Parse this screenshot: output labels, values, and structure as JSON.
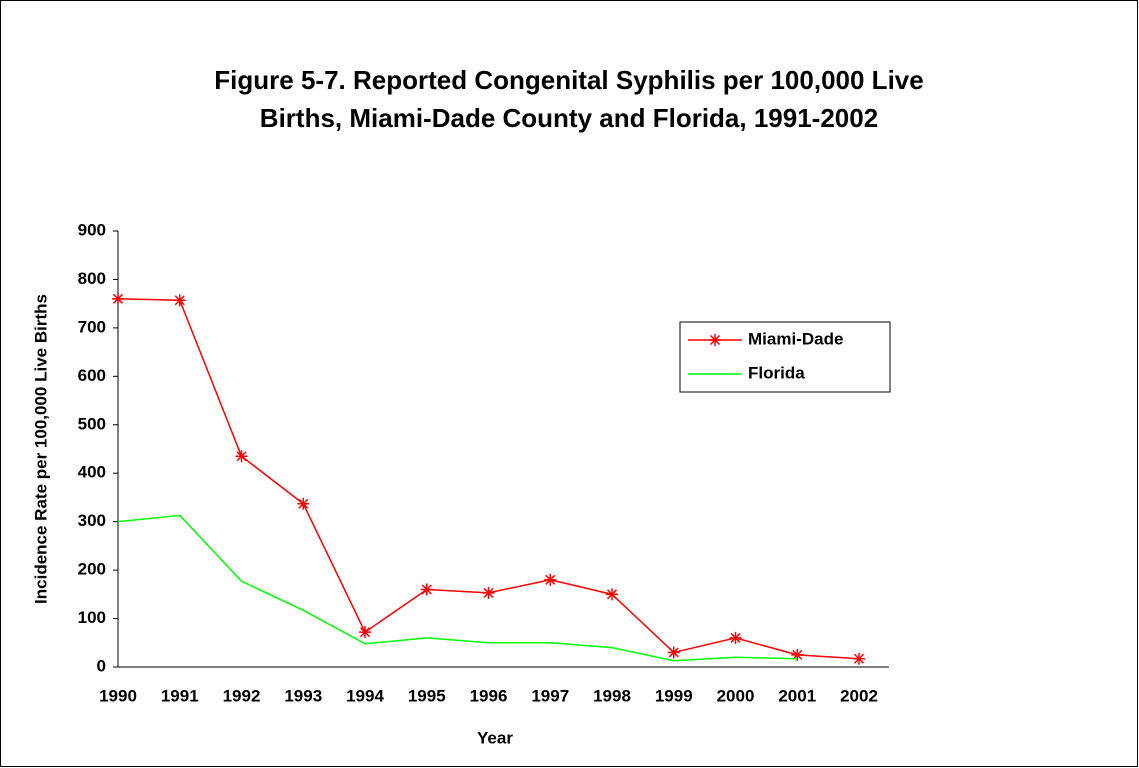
{
  "chart_data": {
    "type": "line",
    "title": [
      "Figure 5-7.  Reported Congenital Syphilis per 100,000 Live",
      "Births, Miami-Dade County and Florida, 1991-2002"
    ],
    "x_label": "Year",
    "y_label": "Incidence Rate per 100,000 Live Births",
    "categories": [
      "1990",
      "1991",
      "1992",
      "1993",
      "1994",
      "1995",
      "1996",
      "1997",
      "1998",
      "1999",
      "2000",
      "2001",
      "2002"
    ],
    "series": [
      {
        "name": "Miami-Dade",
        "color": "#ff0000",
        "marker": "asterisk",
        "values": [
          760,
          757,
          435,
          337,
          72,
          160,
          153,
          180,
          150,
          30,
          60,
          25,
          17
        ]
      },
      {
        "name": "Florida",
        "color": "#00ff00",
        "values": [
          300,
          313,
          177,
          117,
          48,
          60,
          50,
          50,
          40,
          13,
          20,
          17,
          null
        ]
      }
    ],
    "ylim": [
      0,
      900
    ],
    "yticks": [
      0,
      100,
      200,
      300,
      400,
      500,
      600,
      700,
      800,
      900
    ],
    "legend": "right"
  }
}
